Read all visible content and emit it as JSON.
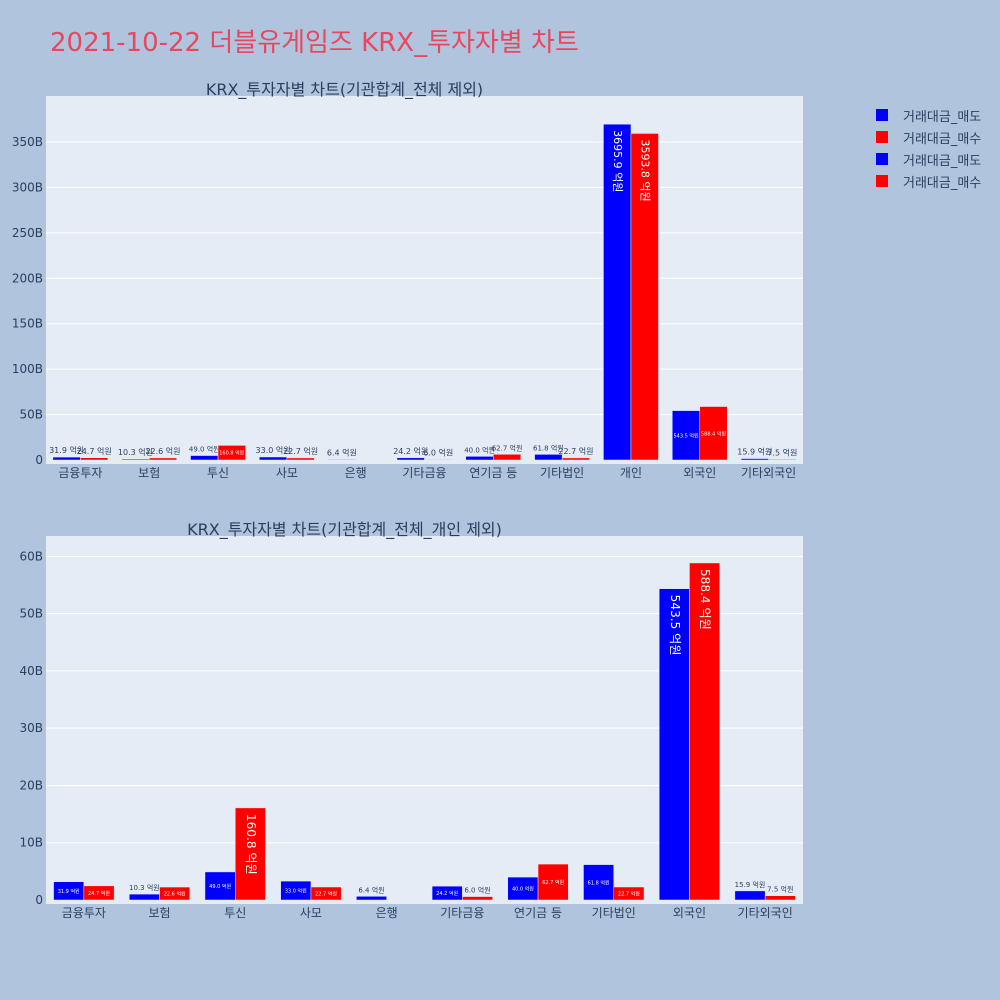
{
  "title": "2021-10-22 더블유게임즈 KRX_투자자별 차트",
  "legend": [
    {
      "label": "거래대금_매도",
      "color": "#0000ff"
    },
    {
      "label": "거래대금_매수",
      "color": "#ff0000"
    },
    {
      "label": "거래대금_매도",
      "color": "#0000ff"
    },
    {
      "label": "거래대금_매수",
      "color": "#ff0000"
    }
  ],
  "chart_data": [
    {
      "type": "bar",
      "title": "KRX_투자자별 차트(기관합계_전체 제외)",
      "categories": [
        "금융투자",
        "보험",
        "투신",
        "사모",
        "은행",
        "기타금융",
        "연기금 등",
        "기타법인",
        "개인",
        "외국인",
        "기타외국인"
      ],
      "series": [
        {
          "name": "거래대금_매도",
          "color": "#0000ff",
          "values": [
            3.19,
            1.03,
            4.9,
            3.3,
            0.64,
            2.42,
            4.0,
            6.18,
            369.59,
            54.35,
            1.59
          ],
          "labels": [
            "31.9 억원",
            "10.3 억원",
            "49.0 억원",
            "33.0 억원",
            "6.4 억원",
            "24.2 억원",
            "40.0 억원",
            "61.8 억원",
            "3695.9 억원",
            "543.5 억원",
            "15.9 억원"
          ]
        },
        {
          "name": "거래대금_매수",
          "color": "#ff0000",
          "values": [
            2.47,
            2.26,
            16.08,
            2.27,
            0,
            0.6,
            6.27,
            2.27,
            359.38,
            58.84,
            0.75
          ],
          "labels": [
            "24.7 억원",
            "22.6 억원",
            "160.8 억원",
            "22.7 억원",
            "",
            "6.0 억원",
            "62.7 억원",
            "22.7 억원",
            "3593.8 억원",
            "588.4 억원",
            "7.5 억원"
          ]
        }
      ],
      "yticks": [
        "0",
        "50B",
        "100B",
        "150B",
        "200B",
        "250B",
        "300B",
        "350B"
      ],
      "ylim": [
        0,
        394
      ]
    },
    {
      "type": "bar",
      "title": "KRX_투자자별 차트(기관합계_전체_개인 제외)",
      "categories": [
        "금융투자",
        "보험",
        "투신",
        "사모",
        "은행",
        "기타금융",
        "연기금 등",
        "기타법인",
        "외국인",
        "기타외국인"
      ],
      "series": [
        {
          "name": "거래대금_매도",
          "color": "#0000ff",
          "values": [
            3.19,
            1.03,
            4.9,
            3.3,
            0.64,
            2.42,
            4.0,
            6.18,
            54.35,
            1.59
          ],
          "labels": [
            "31.9 억원",
            "10.3 억원",
            "49.0 억원",
            "33.0 억원",
            "6.4 억원",
            "24.2 억원",
            "40.0 억원",
            "61.8 억원",
            "543.5 억원",
            "15.9 억원"
          ]
        },
        {
          "name": "거래대금_매수",
          "color": "#ff0000",
          "values": [
            2.47,
            2.26,
            16.08,
            2.27,
            0,
            0.6,
            6.27,
            2.27,
            58.84,
            0.75
          ],
          "labels": [
            "24.7 억원",
            "22.6 억원",
            "160.8 억원",
            "22.7 억원",
            "",
            "6.0 억원",
            "62.7 억원",
            "22.7 억원",
            "588.4 억원",
            "7.5 억원"
          ]
        }
      ],
      "yticks": [
        "0",
        "10B",
        "20B",
        "30B",
        "40B",
        "50B",
        "60B"
      ],
      "ylim": [
        0,
        62.5
      ]
    }
  ]
}
